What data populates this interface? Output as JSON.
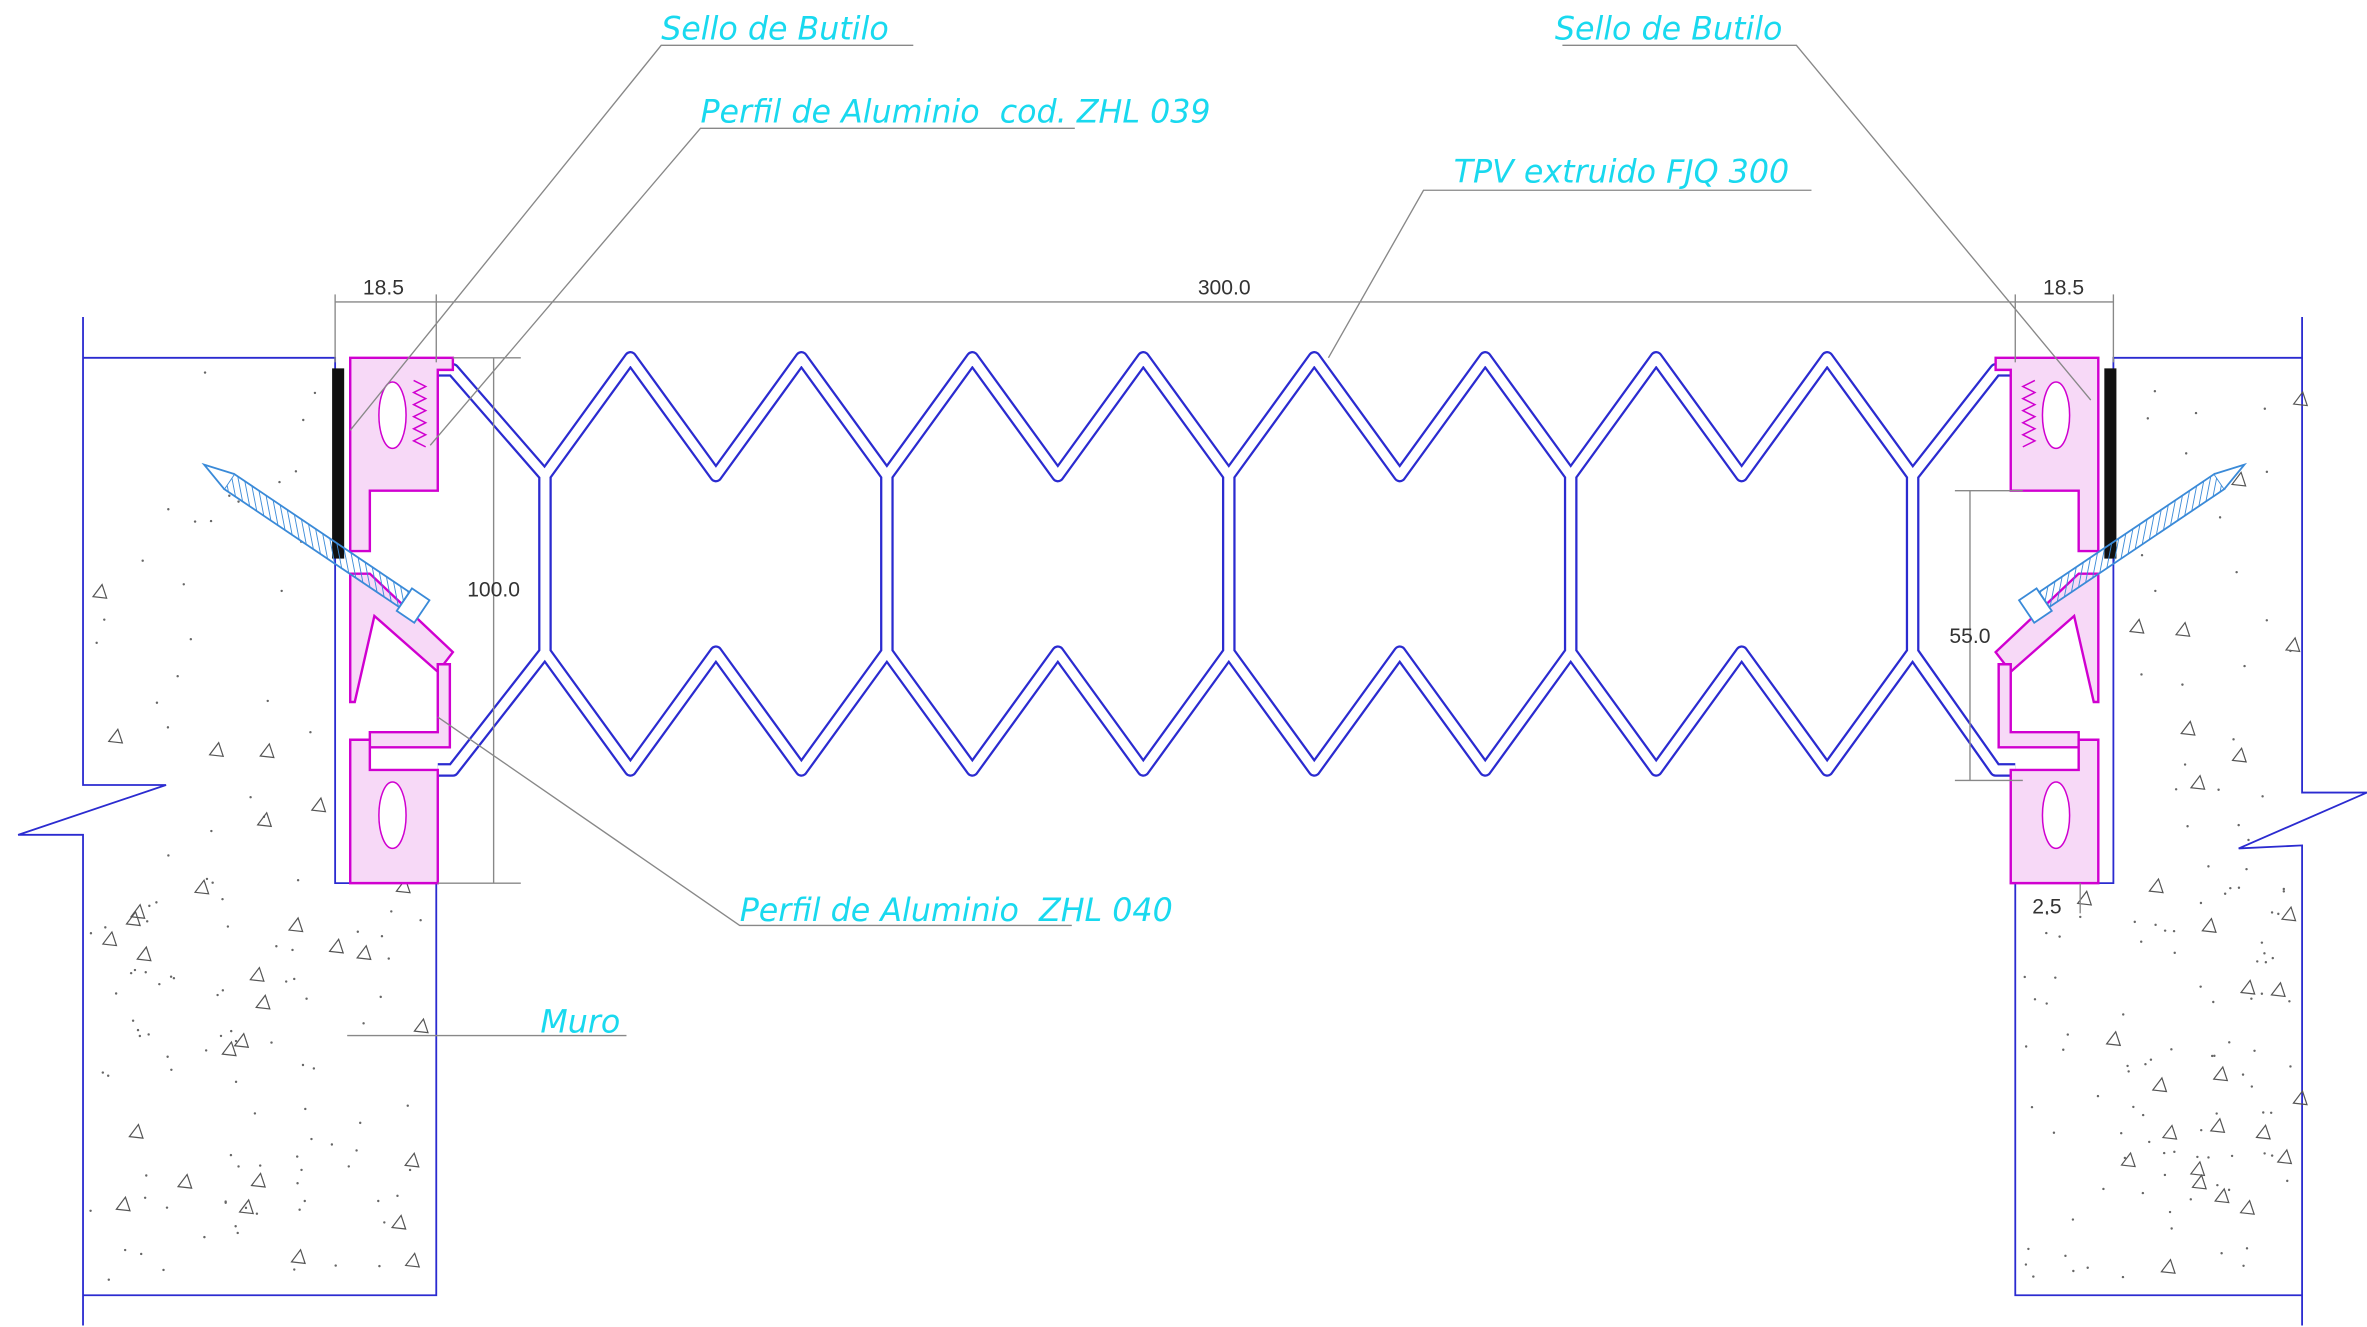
{
  "labels": [
    {
      "text": "Sello de Butilo"
    },
    {
      "text": "Perfil de Aluminio  cod. ZHL 039"
    },
    {
      "text": "TPV extruido FJQ 300"
    },
    {
      "text": "Sello de Butilo"
    },
    {
      "text": "Perfil de Aluminio  ZHL 040"
    },
    {
      "text": "Muro"
    }
  ],
  "dimensions": [
    "18.5",
    "300.0",
    "18.5",
    "100.0",
    "55.0",
    "2.5"
  ]
}
